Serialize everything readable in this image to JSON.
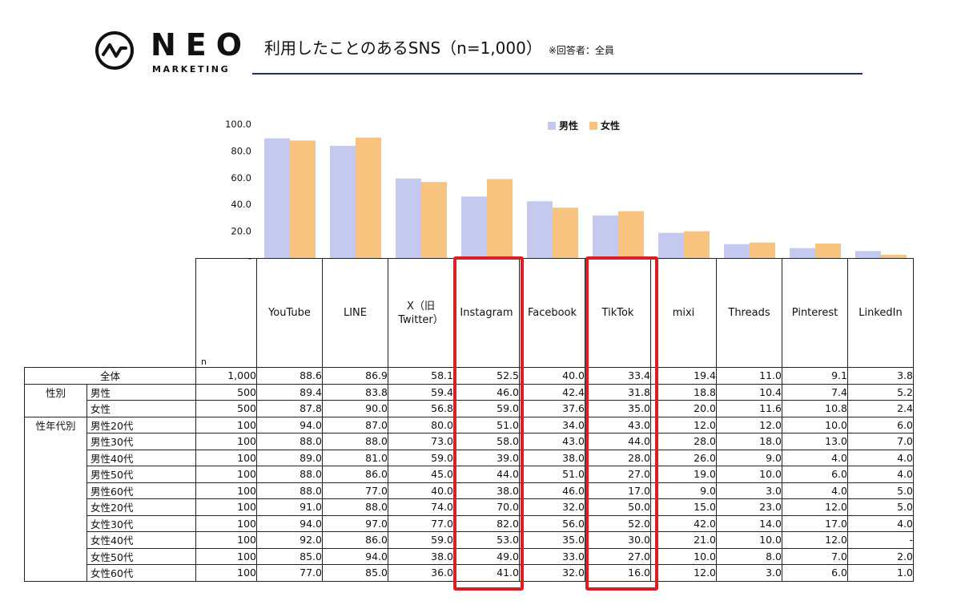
{
  "header": {
    "logo_word": "NEO",
    "logo_sub": "MARKETING",
    "title": "利用したことのあるSNS（n=1,000）",
    "note": "※回答者：全員"
  },
  "colors": {
    "male": "#c3c9ef",
    "female": "#f8c27f",
    "highlight": "#d91f26",
    "rule": "#1f3070"
  },
  "chart_data": {
    "type": "bar",
    "title": "",
    "xlabel": "",
    "ylabel": "",
    "ylim": [
      0,
      100
    ],
    "yticks": [
      "-",
      "20.0",
      "40.0",
      "60.0",
      "80.0",
      "100.0"
    ],
    "legend": "top-right",
    "categories": [
      "YouTube",
      "LINE",
      "X（旧Twitter）",
      "Instagram",
      "Facebook",
      "TikTok",
      "mixi",
      "Threads",
      "Pinterest",
      "LinkedIn"
    ],
    "series": [
      {
        "name": "男性",
        "values": [
          89.4,
          83.8,
          59.4,
          46.0,
          42.4,
          31.8,
          18.8,
          10.4,
          7.4,
          5.2
        ]
      },
      {
        "name": "女性",
        "values": [
          87.8,
          90.0,
          56.8,
          59.0,
          37.6,
          35.0,
          20.0,
          11.6,
          10.8,
          2.4
        ]
      }
    ]
  },
  "table": {
    "n_label": "n",
    "platforms": [
      [
        "YouTube"
      ],
      [
        "LINE"
      ],
      [
        "X（旧",
        "Twitter）"
      ],
      [
        "Instagram"
      ],
      [
        "Facebook"
      ],
      [
        "TikTok"
      ],
      [
        "mixi"
      ],
      [
        "Threads"
      ],
      [
        "Pinterest"
      ],
      [
        "LinkedIn"
      ]
    ],
    "rows": [
      {
        "group": "",
        "label": "全体",
        "n": "1,000",
        "values": [
          "88.6",
          "86.9",
          "58.1",
          "52.5",
          "40.0",
          "33.4",
          "19.4",
          "11.0",
          "9.1",
          "3.8"
        ]
      },
      {
        "group": "性別",
        "label": "男性",
        "n": "500",
        "values": [
          "89.4",
          "83.8",
          "59.4",
          "46.0",
          "42.4",
          "31.8",
          "18.8",
          "10.4",
          "7.4",
          "5.2"
        ]
      },
      {
        "group": "",
        "label": "女性",
        "n": "500",
        "values": [
          "87.8",
          "90.0",
          "56.8",
          "59.0",
          "37.6",
          "35.0",
          "20.0",
          "11.6",
          "10.8",
          "2.4"
        ]
      },
      {
        "group": "性年代別",
        "label": "男性20代",
        "n": "100",
        "values": [
          "94.0",
          "87.0",
          "80.0",
          "51.0",
          "34.0",
          "43.0",
          "12.0",
          "12.0",
          "10.0",
          "6.0"
        ]
      },
      {
        "group": "",
        "label": "男性30代",
        "n": "100",
        "values": [
          "88.0",
          "88.0",
          "73.0",
          "58.0",
          "43.0",
          "44.0",
          "28.0",
          "18.0",
          "13.0",
          "7.0"
        ]
      },
      {
        "group": "",
        "label": "男性40代",
        "n": "100",
        "values": [
          "89.0",
          "81.0",
          "59.0",
          "39.0",
          "38.0",
          "28.0",
          "26.0",
          "9.0",
          "4.0",
          "4.0"
        ]
      },
      {
        "group": "",
        "label": "男性50代",
        "n": "100",
        "values": [
          "88.0",
          "86.0",
          "45.0",
          "44.0",
          "51.0",
          "27.0",
          "19.0",
          "10.0",
          "6.0",
          "4.0"
        ]
      },
      {
        "group": "",
        "label": "男性60代",
        "n": "100",
        "values": [
          "88.0",
          "77.0",
          "40.0",
          "38.0",
          "46.0",
          "17.0",
          "9.0",
          "3.0",
          "4.0",
          "5.0"
        ]
      },
      {
        "group": "",
        "label": "女性20代",
        "n": "100",
        "values": [
          "91.0",
          "88.0",
          "74.0",
          "70.0",
          "32.0",
          "50.0",
          "15.0",
          "23.0",
          "12.0",
          "5.0"
        ]
      },
      {
        "group": "",
        "label": "女性30代",
        "n": "100",
        "values": [
          "94.0",
          "97.0",
          "77.0",
          "82.0",
          "56.0",
          "52.0",
          "42.0",
          "14.0",
          "17.0",
          "4.0"
        ]
      },
      {
        "group": "",
        "label": "女性40代",
        "n": "100",
        "values": [
          "92.0",
          "86.0",
          "59.0",
          "53.0",
          "35.0",
          "30.0",
          "21.0",
          "10.0",
          "12.0",
          "-"
        ]
      },
      {
        "group": "",
        "label": "女性50代",
        "n": "100",
        "values": [
          "85.0",
          "94.0",
          "38.0",
          "49.0",
          "33.0",
          "27.0",
          "10.0",
          "8.0",
          "7.0",
          "2.0"
        ]
      },
      {
        "group": "",
        "label": "女性60代",
        "n": "100",
        "values": [
          "77.0",
          "85.0",
          "36.0",
          "41.0",
          "32.0",
          "16.0",
          "12.0",
          "3.0",
          "6.0",
          "1.0"
        ]
      }
    ]
  }
}
